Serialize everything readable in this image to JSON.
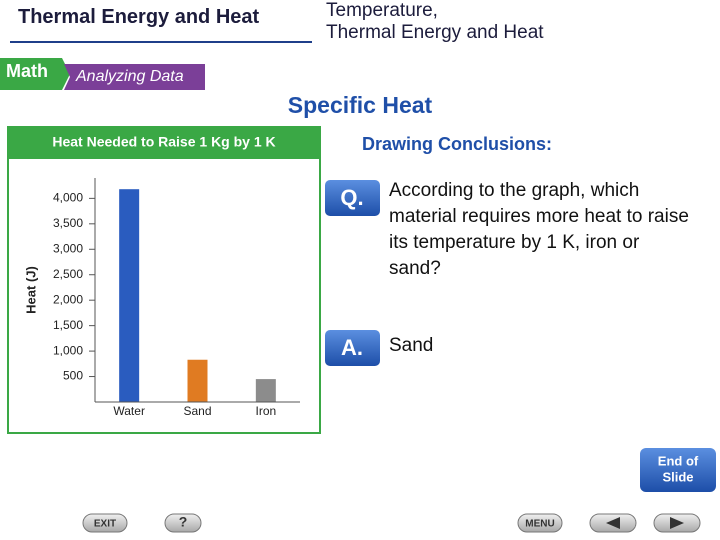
{
  "header": {
    "chapter": "Thermal Energy and Heat",
    "section": [
      "Temperature,",
      "Thermal Energy and Heat"
    ]
  },
  "tabs": [
    "Math",
    "Analyzing Data"
  ],
  "heading": "Specific Heat",
  "chart_data": {
    "type": "bar",
    "title": "Heat Needed to Raise 1 Kg by 1 K",
    "y_label": "Heat (J)",
    "categories": [
      "Water",
      "Sand",
      "Iron"
    ],
    "values": [
      4180,
      830,
      450
    ],
    "colors": [
      "#2a5cbf",
      "#e07b22",
      "#8c8c8c"
    ],
    "ylim": [
      0,
      4400
    ],
    "yticks": [
      500,
      {
        "value": 1000,
        "label": "1,000"
      },
      {
        "value": 1500,
        "label": "1,500"
      },
      {
        "value": 2000,
        "label": "2,000"
      },
      {
        "value": 2500,
        "label": "2,500"
      },
      {
        "value": 3000,
        "label": "3,000"
      },
      {
        "value": 3500,
        "label": "3,500"
      },
      {
        "value": 4000,
        "label": "4,000"
      }
    ]
  },
  "conclusions": {
    "title": "Drawing Conclusions:",
    "question_label": "Q.",
    "question": "According to the graph, which material requires more heat to raise its temperature by 1 K, iron or sand?",
    "answer_label": "A.",
    "answer": "Sand"
  },
  "nav": {
    "end": [
      "End of",
      "Slide"
    ],
    "exit": "EXIT",
    "help": "?",
    "menu": "MENU"
  }
}
